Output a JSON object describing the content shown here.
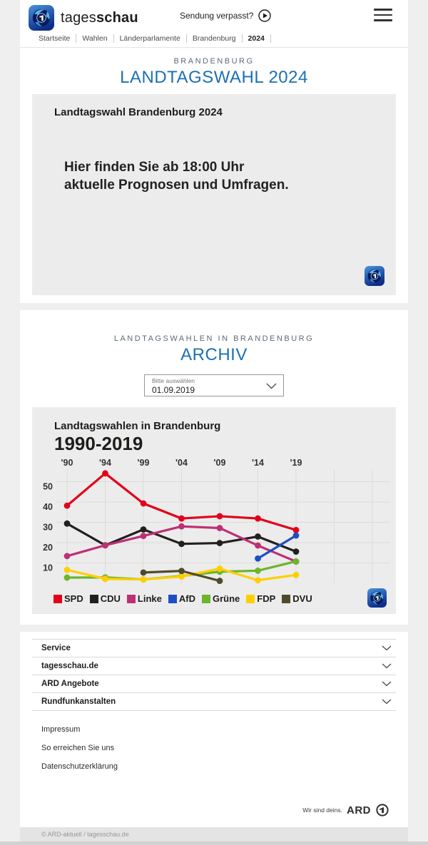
{
  "theme": {
    "accent_blue": "#1c70b4",
    "card_bg": "#ececec",
    "page_bg": "#efefef",
    "text_dark": "#1d1d1b"
  },
  "icons": {
    "tagesschau-globe-icon": "blue rounded square with globe and 1",
    "play-icon": "▶ in circle",
    "menu-icon": "≡",
    "chevron-down-icon": "⌄",
    "ard-one-icon": "1 in circle"
  },
  "header": {
    "brand_prefix": "tages",
    "brand_suffix": "schau",
    "sendung_verpasst": "Sendung verpasst?"
  },
  "breadcrumb": [
    "Startseite",
    "Wahlen",
    "Länderparlamente",
    "Brandenburg",
    "2024"
  ],
  "hero": {
    "kicker": "BRANDENBURG",
    "title": "LANDTAGSWAHL 2024"
  },
  "teaser_card": {
    "title": "Landtagswahl Brandenburg 2024",
    "line1": "Hier finden Sie ab 18:00 Uhr",
    "line2": "aktuelle Prognosen und Umfragen."
  },
  "archive": {
    "kicker": "LANDTAGSWAHLEN IN BRANDENBURG",
    "title": "ARCHIV",
    "select_label": "Bitte auswählen",
    "select_value": "01.09.2019"
  },
  "chart_card": {
    "title": "Landtagswahlen in Brandenburg",
    "subtitle": "1990-2019"
  },
  "chart_data": {
    "type": "line",
    "title": "Landtagswahlen in Brandenburg 1990-2019",
    "unit": "percent of vote",
    "categories": [
      "'90",
      "'94",
      "'99",
      "'04",
      "'09",
      "'14",
      "'19"
    ],
    "years": [
      1990,
      1994,
      1999,
      2004,
      2009,
      2014,
      2019
    ],
    "ylim": [
      0,
      60
    ],
    "yticks": [
      10,
      20,
      30,
      40,
      50
    ],
    "grid": true,
    "legend_position": "bottom",
    "series": [
      {
        "name": "SPD",
        "color": "#e2001a",
        "values": [
          38.2,
          54.1,
          39.3,
          31.9,
          33.0,
          31.9,
          26.2
        ]
      },
      {
        "name": "CDU",
        "color": "#221f1f",
        "values": [
          29.4,
          18.7,
          26.5,
          19.4,
          19.8,
          23.0,
          15.6
        ]
      },
      {
        "name": "Linke",
        "color": "#bd3075",
        "values": [
          13.4,
          18.7,
          23.3,
          28.0,
          27.2,
          18.6,
          10.7
        ]
      },
      {
        "name": "AfD",
        "color": "#1d4fc4",
        "values": [
          null,
          null,
          null,
          null,
          null,
          12.2,
          23.5
        ]
      },
      {
        "name": "Grüne",
        "color": "#6db52b",
        "values": [
          2.8,
          2.9,
          1.9,
          3.6,
          5.7,
          6.2,
          10.8
        ]
      },
      {
        "name": "FDP",
        "color": "#ffce00",
        "values": [
          6.6,
          2.2,
          1.9,
          3.3,
          7.2,
          1.5,
          4.1
        ]
      },
      {
        "name": "DVU",
        "color": "#514a2a",
        "values": [
          null,
          null,
          5.3,
          6.1,
          1.2,
          null,
          null
        ]
      }
    ]
  },
  "footer": {
    "accordion": [
      "Service",
      "tagesschau.de",
      "ARD Angebote",
      "Rundfunkanstalten"
    ],
    "links": [
      "Impressum",
      "So erreichen Sie uns",
      "Datenschutzerklärung"
    ],
    "ard_claim": "Wir sind deins.",
    "ard_brand": "ARD",
    "copyright": "© ARD-aktuell / tagesschau.de"
  }
}
